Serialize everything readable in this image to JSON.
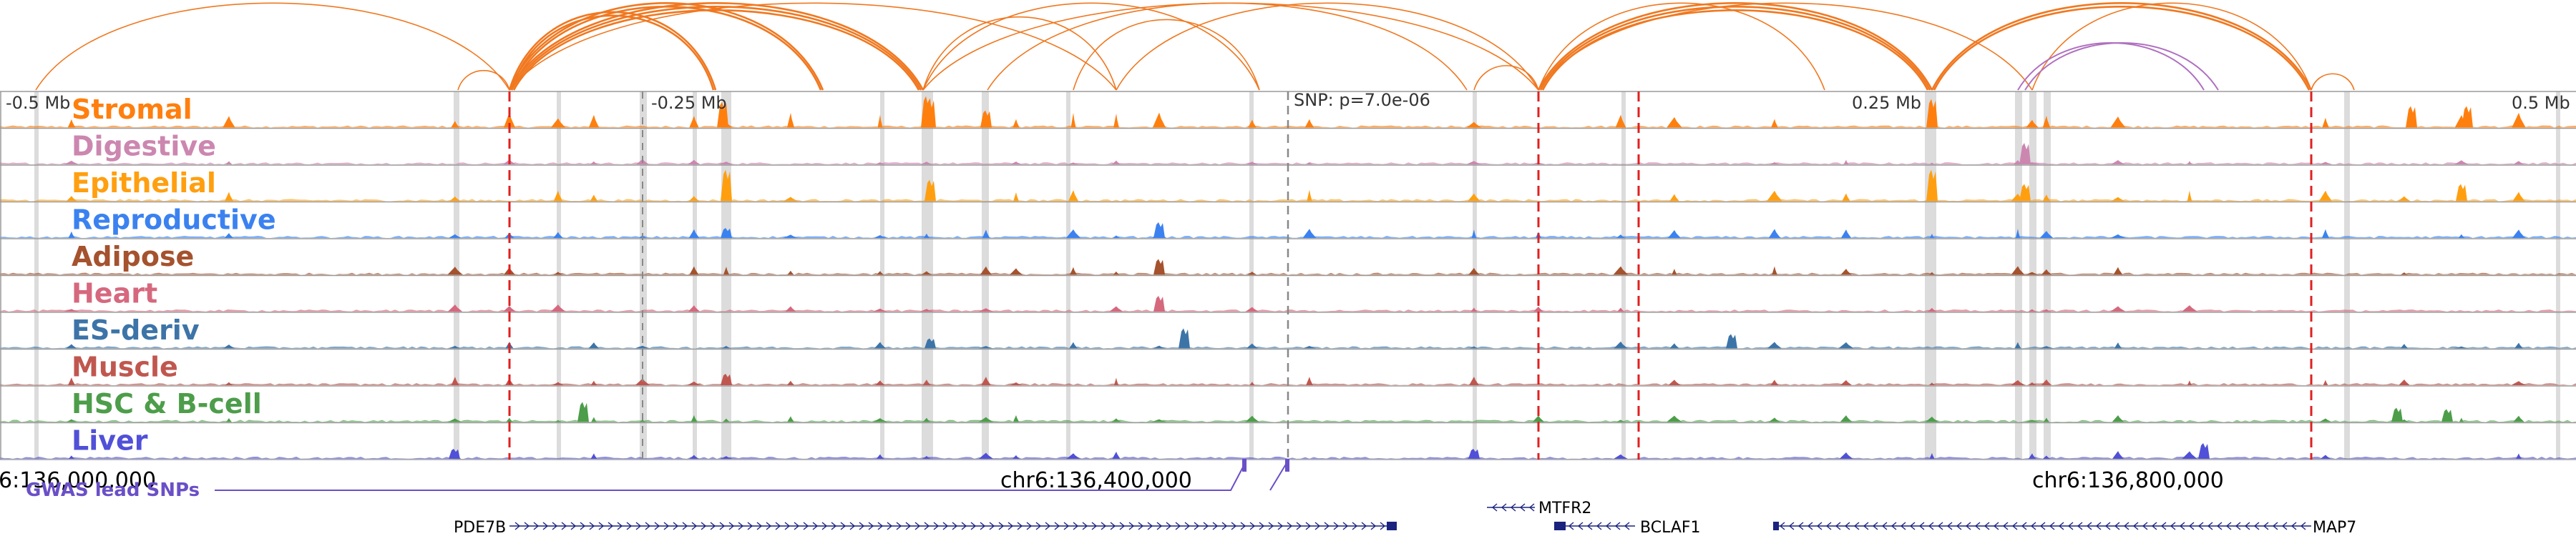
{
  "tracks": [
    {
      "label": "Stromal",
      "color": "#ff7f0e"
    },
    {
      "label": "Digestive",
      "color": "#cc87b0"
    },
    {
      "label": "Epithelial",
      "color": "#ff9f10"
    },
    {
      "label": "Reproductive",
      "color": "#3b82f0"
    },
    {
      "label": "Adipose",
      "color": "#a5522e"
    },
    {
      "label": "Heart",
      "color": "#d6687e"
    },
    {
      "label": "ES-deriv",
      "color": "#3d74a8"
    },
    {
      "label": "Muscle",
      "color": "#c0574f"
    },
    {
      "label": "HSC & B-cell",
      "color": "#4d9d4a"
    },
    {
      "label": "Liver",
      "color": "#5050d8"
    }
  ],
  "offset_axis": {
    "labels": [
      "-0.5 Mb",
      "-0.25 Mb",
      "0.25 Mb",
      "0.5 Mb"
    ],
    "snp_label": "SNP: p=7.0e-06"
  },
  "coordinates": [
    "6:136,000,000",
    "chr6:136,400,000",
    "chr6:136,800,000"
  ],
  "gwas": {
    "label": "GWAS lead SNPs",
    "color": "#6a4fc8"
  },
  "genes": [
    {
      "name": "PDE7B",
      "strand": "+"
    },
    {
      "name": "MTFR2",
      "strand": "-"
    },
    {
      "name": "BCLAF1",
      "strand": "-"
    },
    {
      "name": "MAP7",
      "strand": "-"
    }
  ],
  "colors": {
    "loop_main": "#f07820",
    "loop_secondary": "#b070c0",
    "red_dash": "#e02020",
    "grey_highlight": "#d0d0d0",
    "gene_color": "#1a237e"
  }
}
